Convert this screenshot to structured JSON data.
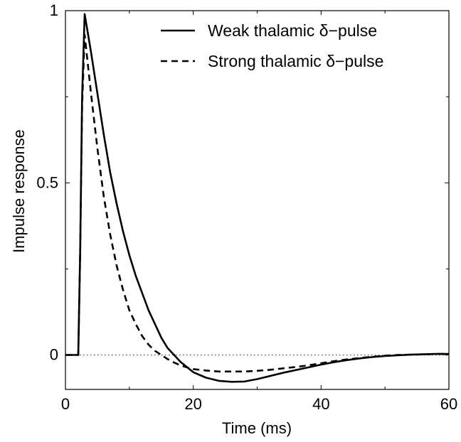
{
  "chart_data": {
    "type": "line",
    "title": "",
    "xlabel": "Time (ms)",
    "ylabel": "Impulse response",
    "xlim": [
      0,
      60
    ],
    "ylim": [
      -0.1,
      1.0
    ],
    "xticks": [
      0,
      20,
      40,
      60
    ],
    "xtick_labels": [
      "0",
      "20",
      "40",
      "60"
    ],
    "yticks": [
      0,
      0.5,
      1
    ],
    "ytick_labels": [
      "0",
      "0.5",
      "1"
    ],
    "grid": false,
    "legend_position": "top-right",
    "reference_line": {
      "y": 0,
      "style": "dotted",
      "color": "#555555"
    },
    "series": [
      {
        "name": "Weak thalamic δ−pulse",
        "style": "solid",
        "color": "#000000",
        "x": [
          0,
          2,
          2.3,
          2.6,
          3,
          4,
          5,
          6,
          7,
          8,
          9,
          10,
          11,
          12,
          13,
          14,
          15,
          16,
          17,
          18,
          19,
          20,
          22,
          24,
          26,
          28,
          30,
          32,
          34,
          36,
          38,
          40,
          42,
          44,
          46,
          48,
          50,
          52,
          54,
          56,
          58,
          60
        ],
        "y": [
          0,
          0,
          0.3,
          0.75,
          0.99,
          0.88,
          0.76,
          0.64,
          0.53,
          0.44,
          0.36,
          0.29,
          0.23,
          0.18,
          0.13,
          0.09,
          0.05,
          0.02,
          0.0,
          -0.02,
          -0.035,
          -0.05,
          -0.066,
          -0.075,
          -0.078,
          -0.077,
          -0.07,
          -0.061,
          -0.052,
          -0.044,
          -0.036,
          -0.028,
          -0.021,
          -0.015,
          -0.01,
          -0.006,
          -0.003,
          -0.001,
          0.001,
          0.002,
          0.003,
          0.003
        ]
      },
      {
        "name": "Strong thalamic δ−pulse",
        "style": "dashed",
        "color": "#000000",
        "x": [
          0,
          2,
          2.3,
          2.6,
          3,
          4,
          5,
          6,
          7,
          8,
          9,
          10,
          11,
          12,
          13,
          14,
          15,
          16,
          17,
          18,
          19,
          20,
          22,
          24,
          26,
          28,
          30,
          32,
          34,
          36,
          38,
          40,
          42,
          44,
          46,
          48,
          50,
          52,
          54,
          56,
          58,
          60
        ],
        "y": [
          0,
          0,
          0.3,
          0.72,
          0.93,
          0.76,
          0.6,
          0.46,
          0.35,
          0.26,
          0.19,
          0.13,
          0.09,
          0.055,
          0.03,
          0.012,
          0.0,
          -0.012,
          -0.022,
          -0.03,
          -0.036,
          -0.041,
          -0.045,
          -0.048,
          -0.048,
          -0.048,
          -0.046,
          -0.043,
          -0.039,
          -0.035,
          -0.03,
          -0.024,
          -0.018,
          -0.013,
          -0.009,
          -0.005,
          -0.002,
          0.0,
          0.001,
          0.002,
          0.003,
          0.003
        ]
      }
    ]
  }
}
